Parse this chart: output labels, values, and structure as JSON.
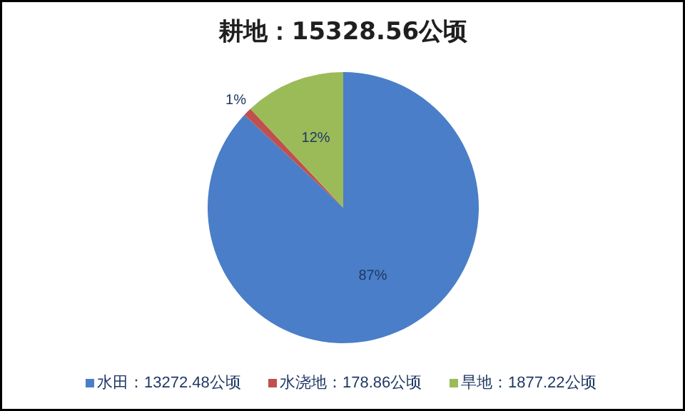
{
  "chart_data": {
    "type": "pie",
    "title": "耕地：15328.56公顷",
    "categories": [
      "水田：13272.48公顷",
      "水浇地：178.86公顷",
      "旱地：1877.22公顷"
    ],
    "values": [
      87,
      1,
      12
    ],
    "colors": [
      "#4a7ec8",
      "#c0504d",
      "#9bbb59"
    ],
    "value_labels": [
      "87%",
      "1%",
      "12%"
    ],
    "legend": "bottom"
  }
}
